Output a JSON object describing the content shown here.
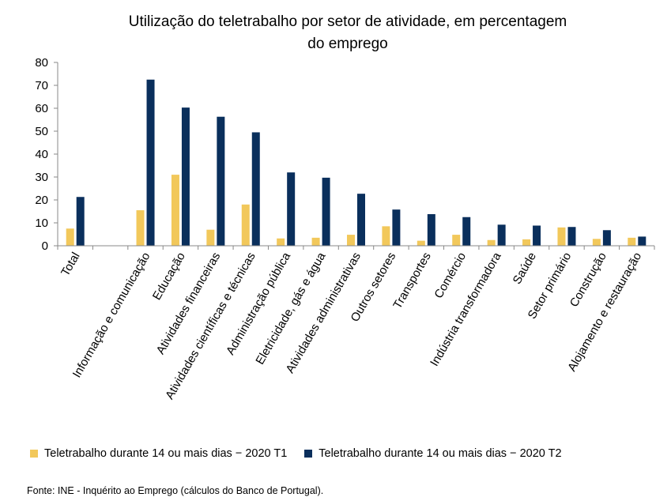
{
  "chart_data": {
    "type": "bar",
    "title_lines": [
      "Utilização do teletrabalho por setor de atividade, em percentagem",
      "do emprego"
    ],
    "xlabel": "",
    "ylabel": "",
    "ylim": [
      0,
      80
    ],
    "yticks": [
      "0",
      "10",
      "20",
      "30",
      "40",
      "50",
      "60",
      "70",
      "80"
    ],
    "grid": false,
    "legend_position": "bottom",
    "categories": [
      "Total",
      "",
      "Informação e comunicação",
      "Educação",
      "Atividades financeiras",
      "Atividades científicas e técnicas",
      "Administração pública",
      "Eletricidade, gás e água",
      "Atividades administrativas",
      "Outros setores",
      "Transportes",
      "Comércio",
      "Indústria transformadora",
      "Saúde",
      "Setor primário",
      "Construção",
      "Alojamento e restauração"
    ],
    "series": [
      {
        "name": "Teletrabalho durante 14 ou mais dias − 2020 T1",
        "color": "#F2C85B",
        "values": [
          7.5,
          null,
          15.5,
          31,
          7,
          18,
          3.2,
          3.5,
          4.8,
          8.5,
          2.2,
          4.8,
          2.5,
          2.8,
          8,
          3,
          3.5
        ]
      },
      {
        "name": "Teletrabalho durante 14 ou mais dias − 2020 T2",
        "color": "#0A2F5C",
        "values": [
          21.3,
          null,
          72.5,
          60.3,
          56.3,
          49.5,
          32,
          29.7,
          22.7,
          15.8,
          13.8,
          12.5,
          9.2,
          8.8,
          8.2,
          6.8,
          4
        ]
      }
    ]
  },
  "source": "Fonte: INE - Inquérito  ao Emprego (cálculos do Banco de Portugal)."
}
